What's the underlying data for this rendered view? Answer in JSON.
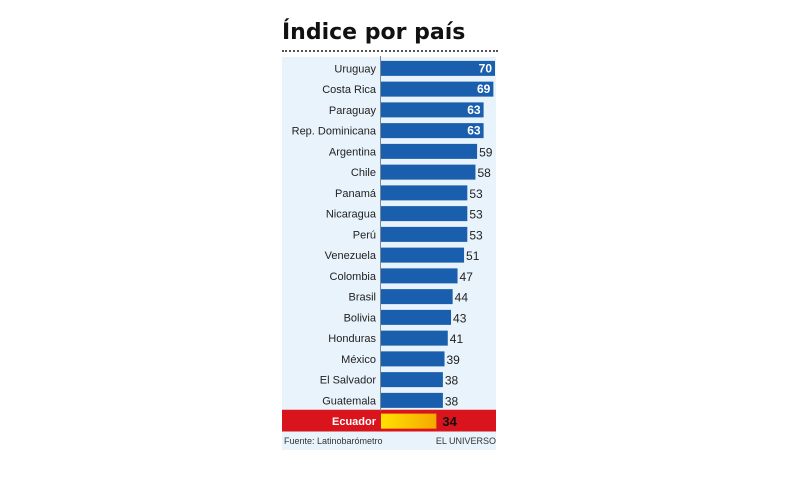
{
  "chart_data": {
    "type": "bar",
    "orientation": "horizontal",
    "title": "Índice por país",
    "categories": [
      "Uruguay",
      "Costa Rica",
      "Paraguay",
      "Rep. Dominicana",
      "Argentina",
      "Chile",
      "Panamá",
      "Nicaragua",
      "Perú",
      "Venezuela",
      "Colombia",
      "Brasil",
      "Bolivia",
      "Honduras",
      "México",
      "El Salvador",
      "Guatemala",
      "Ecuador"
    ],
    "values": [
      70,
      69,
      63,
      63,
      59,
      58,
      53,
      53,
      53,
      51,
      47,
      44,
      43,
      41,
      39,
      38,
      38,
      34
    ],
    "value_labels_inside_bar": [
      70,
      69,
      63,
      63
    ],
    "highlight": "Ecuador",
    "xlim": [
      0,
      70
    ],
    "grid": false,
    "legend": "none",
    "colors": {
      "bar": "#1a5fad",
      "panel": "#e9f3fb",
      "highlight_band": "#d9141c",
      "highlight_bar_start": "#ffe100",
      "highlight_bar_end": "#f5a800"
    },
    "source": "Fuente: Latinobarómetro",
    "credit": "EL UNIVERSO"
  }
}
